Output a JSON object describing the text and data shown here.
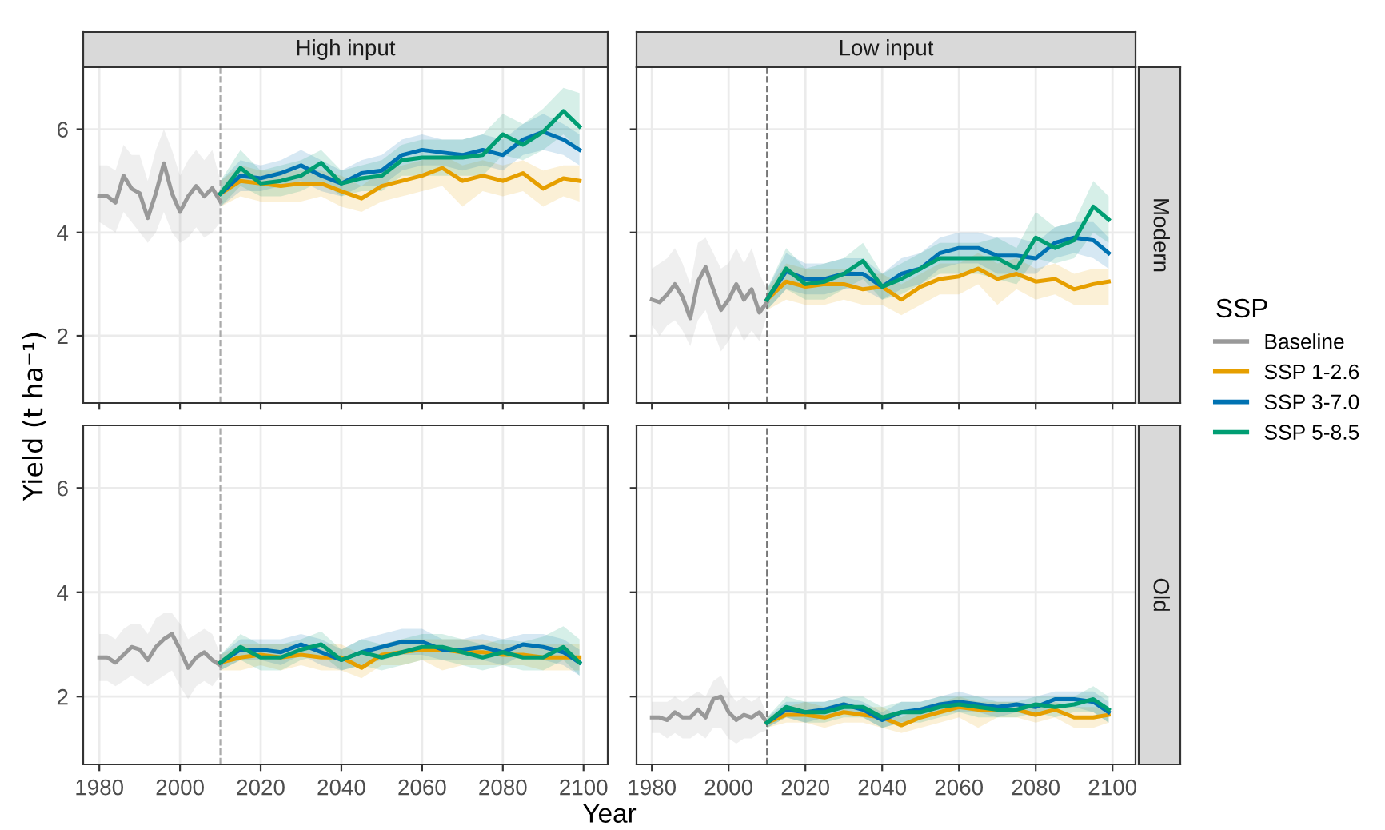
{
  "chart_data": [
    {
      "type": "line",
      "title": "High input",
      "ylabel": "Yield (t ha⁻¹)",
      "legend_title": "SSP",
      "legend": "right",
      "tick_labels": "y",
      "grid": true,
      "xlim": [
        1976,
        2106
      ],
      "ylim": [
        0.7,
        7.2
      ],
      "xticks": [
        1980,
        2000,
        2020,
        2040,
        2060,
        2080,
        2100
      ],
      "yticks": [
        2,
        4,
        6
      ],
      "ref_lines": [
        {
          "axis": "x",
          "value": 2010,
          "line_style": "dashed",
          "color": "#aaaaaa"
        }
      ],
      "series": [
        {
          "name": "Baseline",
          "color": "#999999",
          "x": [
            1980,
            1982,
            1984,
            1986,
            1988,
            1990,
            1992,
            1994,
            1996,
            1998,
            2000,
            2002,
            2004,
            2006,
            2008,
            2010
          ],
          "values": [
            4.71,
            4.7,
            4.58,
            5.1,
            4.85,
            4.76,
            4.28,
            4.76,
            5.34,
            4.76,
            4.4,
            4.7,
            4.9,
            4.7,
            4.86,
            4.6
          ],
          "lower": [
            4.2,
            4.1,
            4.0,
            4.4,
            4.2,
            4.0,
            3.8,
            4.0,
            4.4,
            4.0,
            3.8,
            3.9,
            4.1,
            3.9,
            4.0,
            4.2
          ],
          "upper": [
            5.3,
            5.3,
            5.2,
            5.7,
            5.5,
            5.5,
            5.0,
            5.6,
            6.0,
            5.6,
            5.1,
            5.4,
            5.6,
            5.4,
            5.6,
            5.0
          ]
        },
        {
          "name": "SSP 1-2.6",
          "color": "#E69F00",
          "x": [
            2010,
            2015,
            2020,
            2025,
            2030,
            2035,
            2040,
            2045,
            2050,
            2055,
            2060,
            2065,
            2070,
            2075,
            2080,
            2085,
            2090,
            2095,
            2099
          ],
          "values": [
            4.75,
            5.0,
            4.95,
            4.9,
            4.95,
            4.95,
            4.8,
            4.66,
            4.9,
            5.0,
            5.1,
            5.25,
            5.0,
            5.1,
            5.0,
            5.15,
            4.85,
            5.05,
            5.0
          ],
          "lower": [
            4.5,
            4.7,
            4.6,
            4.6,
            4.6,
            4.7,
            4.5,
            4.4,
            4.6,
            4.7,
            4.8,
            4.9,
            4.5,
            4.8,
            4.7,
            4.8,
            4.5,
            4.7,
            4.6
          ],
          "upper": [
            5.0,
            5.3,
            5.2,
            5.2,
            5.2,
            5.2,
            5.1,
            4.9,
            5.2,
            5.3,
            5.4,
            5.5,
            5.3,
            5.4,
            5.3,
            5.4,
            5.2,
            5.3,
            5.3
          ]
        },
        {
          "name": "SSP 3-7.0",
          "color": "#0072B2",
          "x": [
            2010,
            2015,
            2020,
            2025,
            2030,
            2035,
            2040,
            2045,
            2050,
            2055,
            2060,
            2065,
            2070,
            2075,
            2080,
            2085,
            2090,
            2095,
            2099
          ],
          "values": [
            4.75,
            5.1,
            5.05,
            5.15,
            5.3,
            5.1,
            4.95,
            5.15,
            5.2,
            5.5,
            5.6,
            5.55,
            5.5,
            5.6,
            5.5,
            5.8,
            5.95,
            5.8,
            5.6
          ],
          "lower": [
            4.5,
            4.8,
            4.8,
            4.9,
            5.0,
            4.8,
            4.7,
            4.9,
            4.9,
            5.2,
            5.3,
            5.3,
            5.2,
            5.3,
            5.2,
            5.5,
            5.6,
            5.5,
            5.3
          ],
          "upper": [
            5.0,
            5.4,
            5.3,
            5.4,
            5.6,
            5.4,
            5.2,
            5.4,
            5.5,
            5.8,
            5.9,
            5.8,
            5.8,
            5.9,
            5.8,
            6.1,
            6.3,
            6.1,
            5.9
          ]
        },
        {
          "name": "SSP 5-8.5",
          "color": "#009E73",
          "x": [
            2010,
            2015,
            2020,
            2025,
            2030,
            2035,
            2040,
            2045,
            2050,
            2055,
            2060,
            2065,
            2070,
            2075,
            2080,
            2085,
            2090,
            2095,
            2099
          ],
          "values": [
            4.75,
            5.25,
            4.95,
            5.0,
            5.1,
            5.35,
            4.95,
            5.05,
            5.1,
            5.4,
            5.45,
            5.45,
            5.45,
            5.5,
            5.9,
            5.7,
            5.95,
            6.35,
            6.05
          ],
          "lower": [
            4.5,
            4.9,
            4.7,
            4.7,
            4.8,
            5.0,
            4.7,
            4.8,
            4.8,
            5.1,
            5.1,
            5.1,
            5.1,
            5.1,
            5.5,
            5.4,
            5.6,
            5.9,
            5.6
          ],
          "upper": [
            5.0,
            5.6,
            5.2,
            5.3,
            5.4,
            5.6,
            5.2,
            5.3,
            5.4,
            5.7,
            5.8,
            5.8,
            5.8,
            5.9,
            6.3,
            6.1,
            6.4,
            6.8,
            6.7
          ]
        }
      ]
    },
    {
      "type": "line",
      "title": "Low input",
      "y2label": "Modern",
      "tick_labels": false,
      "grid": true,
      "xlim": [
        1976,
        2106
      ],
      "ylim": [
        0.7,
        7.2
      ],
      "xticks": [
        1980,
        2000,
        2020,
        2040,
        2060,
        2080,
        2100
      ],
      "yticks": [
        2,
        4,
        6
      ],
      "ref_lines": [
        {
          "axis": "x",
          "value": 2010,
          "line_style": "dashed",
          "color": "#777777"
        }
      ],
      "series": [
        {
          "color": "#999999",
          "x": [
            1980,
            1982,
            1984,
            1986,
            1988,
            1990,
            1992,
            1994,
            1996,
            1998,
            2000,
            2002,
            2004,
            2006,
            2008,
            2010
          ],
          "values": [
            2.7,
            2.65,
            2.8,
            3.0,
            2.75,
            2.34,
            3.05,
            3.33,
            2.9,
            2.5,
            2.7,
            3.0,
            2.7,
            2.9,
            2.45,
            2.65
          ],
          "lower": [
            2.2,
            2.0,
            2.2,
            2.3,
            2.1,
            1.8,
            2.3,
            2.5,
            2.1,
            1.7,
            1.9,
            2.2,
            1.9,
            2.1,
            1.9,
            2.4
          ],
          "upper": [
            3.3,
            3.4,
            3.5,
            3.7,
            3.4,
            3.0,
            3.8,
            3.9,
            3.6,
            3.3,
            3.4,
            3.7,
            3.4,
            3.7,
            3.2,
            2.9
          ]
        },
        {
          "color": "#E69F00",
          "x": [
            2010,
            2015,
            2020,
            2025,
            2030,
            2035,
            2040,
            2045,
            2050,
            2055,
            2060,
            2065,
            2070,
            2075,
            2080,
            2085,
            2090,
            2095,
            2099
          ],
          "values": [
            2.7,
            3.05,
            2.95,
            3.0,
            3.0,
            2.9,
            2.95,
            2.7,
            2.95,
            3.1,
            3.15,
            3.3,
            3.1,
            3.2,
            3.05,
            3.1,
            2.9,
            3.0,
            3.05
          ],
          "lower": [
            2.5,
            2.7,
            2.6,
            2.6,
            2.7,
            2.6,
            2.6,
            2.4,
            2.6,
            2.8,
            2.8,
            3.0,
            2.6,
            2.9,
            2.7,
            2.8,
            2.6,
            2.6,
            2.6
          ],
          "upper": [
            2.9,
            3.4,
            3.3,
            3.3,
            3.3,
            3.2,
            3.2,
            3.0,
            3.2,
            3.4,
            3.4,
            3.6,
            3.4,
            3.5,
            3.3,
            3.4,
            3.2,
            3.3,
            3.3
          ]
        },
        {
          "color": "#0072B2",
          "x": [
            2010,
            2015,
            2020,
            2025,
            2030,
            2035,
            2040,
            2045,
            2050,
            2055,
            2060,
            2065,
            2070,
            2075,
            2080,
            2085,
            2090,
            2095,
            2099
          ],
          "values": [
            2.7,
            3.25,
            3.1,
            3.1,
            3.2,
            3.2,
            2.95,
            3.2,
            3.3,
            3.6,
            3.7,
            3.7,
            3.55,
            3.55,
            3.5,
            3.8,
            3.9,
            3.85,
            3.6
          ],
          "lower": [
            2.5,
            2.9,
            2.8,
            2.8,
            2.9,
            2.9,
            2.7,
            2.9,
            3.0,
            3.3,
            3.4,
            3.4,
            3.2,
            3.2,
            3.2,
            3.5,
            3.6,
            3.5,
            3.3
          ],
          "upper": [
            2.9,
            3.6,
            3.4,
            3.4,
            3.5,
            3.5,
            3.2,
            3.5,
            3.6,
            3.9,
            4.0,
            4.0,
            3.9,
            3.9,
            3.8,
            4.1,
            4.2,
            4.2,
            3.9
          ]
        },
        {
          "color": "#009E73",
          "x": [
            2010,
            2015,
            2020,
            2025,
            2030,
            2035,
            2040,
            2045,
            2050,
            2055,
            2060,
            2065,
            2070,
            2075,
            2080,
            2085,
            2090,
            2095,
            2099
          ],
          "values": [
            2.7,
            3.3,
            3.0,
            3.05,
            3.2,
            3.45,
            2.95,
            3.1,
            3.3,
            3.5,
            3.5,
            3.5,
            3.5,
            3.3,
            3.9,
            3.7,
            3.85,
            4.5,
            4.25
          ],
          "lower": [
            2.5,
            2.9,
            2.7,
            2.7,
            2.9,
            3.1,
            2.7,
            2.8,
            3.0,
            3.2,
            3.2,
            3.2,
            3.1,
            3.0,
            3.5,
            3.4,
            3.5,
            4.0,
            3.8
          ],
          "upper": [
            2.9,
            3.7,
            3.3,
            3.4,
            3.5,
            3.8,
            3.2,
            3.4,
            3.6,
            3.8,
            3.8,
            3.8,
            3.9,
            3.7,
            4.4,
            4.1,
            4.2,
            5.0,
            4.7
          ]
        }
      ]
    },
    {
      "type": "line",
      "xlabel": "Year",
      "grid": true,
      "xlim": [
        1976,
        2106
      ],
      "ylim": [
        0.7,
        7.2
      ],
      "xticks": [
        1980,
        2000,
        2020,
        2040,
        2060,
        2080,
        2100
      ],
      "yticks": [
        2,
        4,
        6
      ],
      "ref_lines": [
        {
          "axis": "x",
          "value": 2010,
          "line_style": "dashed",
          "color": "#aaaaaa"
        }
      ],
      "series": [
        {
          "color": "#999999",
          "x": [
            1980,
            1982,
            1984,
            1986,
            1988,
            1990,
            1992,
            1994,
            1996,
            1998,
            2000,
            2002,
            2004,
            2006,
            2008,
            2010
          ],
          "values": [
            2.75,
            2.75,
            2.65,
            2.8,
            2.95,
            2.9,
            2.7,
            2.95,
            3.1,
            3.2,
            2.9,
            2.55,
            2.75,
            2.85,
            2.7,
            2.6
          ],
          "lower": [
            2.3,
            2.3,
            2.2,
            2.3,
            2.4,
            2.3,
            2.2,
            2.3,
            2.4,
            2.5,
            2.2,
            1.95,
            2.2,
            2.3,
            2.2,
            2.4
          ],
          "upper": [
            3.2,
            3.2,
            3.1,
            3.3,
            3.4,
            3.4,
            3.2,
            3.5,
            3.6,
            3.6,
            3.4,
            3.1,
            3.2,
            3.3,
            3.2,
            2.8
          ]
        },
        {
          "color": "#E69F00",
          "x": [
            2010,
            2015,
            2020,
            2025,
            2030,
            2035,
            2040,
            2045,
            2050,
            2055,
            2060,
            2065,
            2070,
            2075,
            2080,
            2085,
            2090,
            2095,
            2099
          ],
          "values": [
            2.65,
            2.75,
            2.8,
            2.75,
            2.8,
            2.75,
            2.75,
            2.55,
            2.8,
            2.85,
            2.9,
            2.9,
            2.85,
            2.85,
            2.8,
            2.8,
            2.75,
            2.75,
            2.75
          ],
          "lower": [
            2.5,
            2.5,
            2.6,
            2.5,
            2.6,
            2.5,
            2.5,
            2.35,
            2.6,
            2.6,
            2.7,
            2.5,
            2.6,
            2.6,
            2.6,
            2.6,
            2.5,
            2.5,
            2.5
          ],
          "upper": [
            2.8,
            3.0,
            3.0,
            3.0,
            3.0,
            3.0,
            3.0,
            2.8,
            3.0,
            3.1,
            3.1,
            3.1,
            3.1,
            3.1,
            3.0,
            3.0,
            3.0,
            3.0,
            3.0
          ]
        },
        {
          "color": "#0072B2",
          "x": [
            2010,
            2015,
            2020,
            2025,
            2030,
            2035,
            2040,
            2045,
            2050,
            2055,
            2060,
            2065,
            2070,
            2075,
            2080,
            2085,
            2090,
            2095,
            2099
          ],
          "values": [
            2.65,
            2.9,
            2.9,
            2.85,
            3.0,
            2.85,
            2.7,
            2.85,
            2.95,
            3.05,
            3.05,
            2.9,
            2.9,
            2.95,
            2.85,
            3.0,
            2.95,
            2.85,
            2.65
          ],
          "lower": [
            2.5,
            2.7,
            2.7,
            2.6,
            2.8,
            2.6,
            2.5,
            2.6,
            2.7,
            2.8,
            2.8,
            2.7,
            2.7,
            2.7,
            2.6,
            2.8,
            2.7,
            2.6,
            2.4
          ],
          "upper": [
            2.8,
            3.1,
            3.1,
            3.1,
            3.2,
            3.1,
            2.9,
            3.1,
            3.2,
            3.3,
            3.3,
            3.1,
            3.1,
            3.2,
            3.1,
            3.2,
            3.2,
            3.1,
            2.9
          ]
        },
        {
          "color": "#009E73",
          "x": [
            2010,
            2015,
            2020,
            2025,
            2030,
            2035,
            2040,
            2045,
            2050,
            2055,
            2060,
            2065,
            2070,
            2075,
            2080,
            2085,
            2090,
            2095,
            2099
          ],
          "values": [
            2.65,
            2.95,
            2.75,
            2.75,
            2.9,
            3.0,
            2.7,
            2.85,
            2.75,
            2.85,
            2.95,
            2.95,
            2.85,
            2.75,
            2.85,
            2.75,
            2.75,
            2.95,
            2.65
          ],
          "lower": [
            2.5,
            2.7,
            2.5,
            2.5,
            2.7,
            2.8,
            2.5,
            2.6,
            2.5,
            2.6,
            2.7,
            2.7,
            2.6,
            2.5,
            2.6,
            2.5,
            2.5,
            2.7,
            2.4
          ],
          "upper": [
            2.8,
            3.2,
            3.0,
            3.0,
            3.1,
            3.25,
            2.9,
            3.1,
            3.0,
            3.1,
            3.2,
            3.2,
            3.1,
            3.0,
            3.1,
            3.05,
            3.15,
            3.35,
            3.1
          ]
        }
      ]
    },
    {
      "type": "line",
      "y2label": "Old",
      "tick_labels": "x",
      "grid": true,
      "xlim": [
        1976,
        2106
      ],
      "ylim": [
        0.7,
        7.2
      ],
      "xticks": [
        1980,
        2000,
        2020,
        2040,
        2060,
        2080,
        2100
      ],
      "yticks": [
        2,
        4,
        6
      ],
      "ref_lines": [
        {
          "axis": "x",
          "value": 2010,
          "line_style": "dashed",
          "color": "#777777"
        }
      ],
      "series": [
        {
          "color": "#999999",
          "x": [
            1980,
            1982,
            1984,
            1986,
            1988,
            1990,
            1992,
            1994,
            1996,
            1998,
            2000,
            2002,
            2004,
            2006,
            2008,
            2010
          ],
          "values": [
            1.6,
            1.6,
            1.55,
            1.7,
            1.6,
            1.6,
            1.75,
            1.6,
            1.95,
            2.0,
            1.7,
            1.55,
            1.65,
            1.6,
            1.7,
            1.5
          ],
          "lower": [
            1.3,
            1.3,
            1.2,
            1.3,
            1.2,
            1.2,
            1.3,
            1.2,
            1.4,
            1.4,
            1.2,
            1.1,
            1.2,
            1.2,
            1.3,
            1.35
          ],
          "upper": [
            1.9,
            1.9,
            1.9,
            2.0,
            1.9,
            2.0,
            2.1,
            2.0,
            2.3,
            2.4,
            2.1,
            1.9,
            2.0,
            1.9,
            2.0,
            1.65
          ]
        },
        {
          "color": "#E69F00",
          "x": [
            2010,
            2015,
            2020,
            2025,
            2030,
            2035,
            2040,
            2045,
            2050,
            2055,
            2060,
            2065,
            2070,
            2075,
            2080,
            2085,
            2090,
            2095,
            2099
          ],
          "values": [
            1.5,
            1.65,
            1.65,
            1.6,
            1.7,
            1.65,
            1.6,
            1.45,
            1.6,
            1.7,
            1.8,
            1.75,
            1.75,
            1.75,
            1.65,
            1.75,
            1.6,
            1.6,
            1.65
          ],
          "lower": [
            1.4,
            1.5,
            1.5,
            1.4,
            1.5,
            1.5,
            1.4,
            1.3,
            1.4,
            1.5,
            1.6,
            1.4,
            1.6,
            1.6,
            1.5,
            1.6,
            1.4,
            1.4,
            1.5
          ],
          "upper": [
            1.6,
            1.8,
            1.9,
            1.8,
            1.9,
            1.8,
            1.8,
            1.6,
            1.8,
            1.9,
            2.0,
            1.9,
            1.9,
            1.9,
            1.8,
            1.9,
            1.8,
            1.8,
            1.8
          ]
        },
        {
          "color": "#0072B2",
          "x": [
            2010,
            2015,
            2020,
            2025,
            2030,
            2035,
            2040,
            2045,
            2050,
            2055,
            2060,
            2065,
            2070,
            2075,
            2080,
            2085,
            2090,
            2095,
            2099
          ],
          "values": [
            1.5,
            1.75,
            1.7,
            1.75,
            1.85,
            1.75,
            1.55,
            1.7,
            1.75,
            1.85,
            1.9,
            1.85,
            1.8,
            1.85,
            1.8,
            1.95,
            1.95,
            1.9,
            1.7
          ],
          "lower": [
            1.4,
            1.6,
            1.5,
            1.6,
            1.7,
            1.6,
            1.4,
            1.5,
            1.6,
            1.7,
            1.7,
            1.7,
            1.6,
            1.7,
            1.6,
            1.8,
            1.8,
            1.7,
            1.5
          ],
          "upper": [
            1.6,
            1.9,
            1.9,
            1.9,
            2.0,
            1.9,
            1.7,
            1.9,
            1.9,
            2.0,
            2.1,
            2.0,
            2.0,
            2.0,
            2.0,
            2.1,
            2.1,
            2.1,
            1.9
          ]
        },
        {
          "color": "#009E73",
          "x": [
            2010,
            2015,
            2020,
            2025,
            2030,
            2035,
            2040,
            2045,
            2050,
            2055,
            2060,
            2065,
            2070,
            2075,
            2080,
            2085,
            2090,
            2095,
            2099
          ],
          "values": [
            1.5,
            1.8,
            1.7,
            1.7,
            1.8,
            1.8,
            1.6,
            1.7,
            1.7,
            1.8,
            1.85,
            1.8,
            1.75,
            1.75,
            1.85,
            1.8,
            1.85,
            1.95,
            1.75
          ],
          "lower": [
            1.4,
            1.6,
            1.5,
            1.5,
            1.6,
            1.6,
            1.4,
            1.5,
            1.5,
            1.6,
            1.7,
            1.6,
            1.6,
            1.6,
            1.7,
            1.6,
            1.7,
            1.7,
            1.5
          ],
          "upper": [
            1.6,
            2.0,
            1.9,
            1.9,
            2.0,
            2.0,
            1.8,
            1.9,
            1.9,
            2.0,
            2.0,
            2.0,
            1.9,
            1.9,
            2.0,
            2.0,
            2.0,
            2.2,
            2.0
          ]
        }
      ]
    }
  ]
}
